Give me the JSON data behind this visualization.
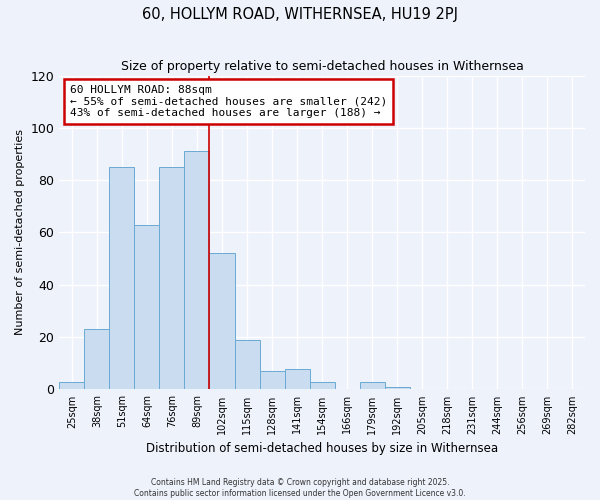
{
  "title": "60, HOLLYM ROAD, WITHERNSEA, HU19 2PJ",
  "subtitle": "Size of property relative to semi-detached houses in Withernsea",
  "xlabel": "Distribution of semi-detached houses by size in Withernsea",
  "ylabel": "Number of semi-detached properties",
  "bar_labels": [
    "25sqm",
    "38sqm",
    "51sqm",
    "64sqm",
    "76sqm",
    "89sqm",
    "102sqm",
    "115sqm",
    "128sqm",
    "141sqm",
    "154sqm",
    "166sqm",
    "179sqm",
    "192sqm",
    "205sqm",
    "218sqm",
    "231sqm",
    "244sqm",
    "256sqm",
    "269sqm",
    "282sqm"
  ],
  "bar_values": [
    3,
    23,
    85,
    63,
    85,
    91,
    52,
    19,
    7,
    8,
    3,
    0,
    3,
    1,
    0,
    0,
    0,
    0,
    0,
    0,
    0
  ],
  "bar_color": "#c9dcf0",
  "bar_edge_color": "#6aaad4",
  "ylim": [
    0,
    120
  ],
  "yticks": [
    0,
    20,
    40,
    60,
    80,
    100,
    120
  ],
  "property_label": "60 HOLLYM ROAD: 88sqm",
  "annotation_line1": "← 55% of semi-detached houses are smaller (242)",
  "annotation_line2": "43% of semi-detached houses are larger (188) →",
  "vline_x": 5.5,
  "background_color": "#eef2fb",
  "grid_color": "#ffffff",
  "footer_line1": "Contains HM Land Registry data © Crown copyright and database right 2025.",
  "footer_line2": "Contains public sector information licensed under the Open Government Licence v3.0."
}
